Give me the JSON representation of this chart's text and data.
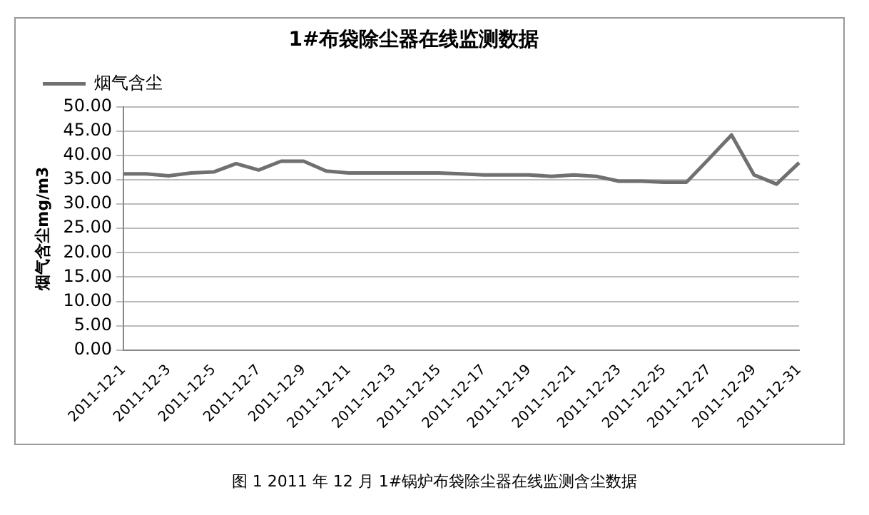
{
  "chart_data": {
    "type": "line",
    "title": "1#布袋除尘器在线监测数据",
    "ylabel": "烟气含尘mg/m3",
    "categories": [
      "2011-12-1",
      null,
      "2011-12-3",
      null,
      "2011-12-5",
      null,
      "2011-12-7",
      null,
      "2011-12-9",
      null,
      "2011-12-11",
      null,
      "2011-12-13",
      null,
      "2011-12-15",
      null,
      "2011-12-17",
      null,
      "2011-12-19",
      null,
      "2011-12-21",
      null,
      "2011-12-23",
      null,
      "2011-12-25",
      null,
      "2011-12-27",
      null,
      "2011-12-29",
      null,
      "2011-12-31"
    ],
    "series": [
      {
        "name": "烟气含尘",
        "color": "#707070",
        "values": [
          36.2,
          36.2,
          35.8,
          36.4,
          36.6,
          38.3,
          37.0,
          38.8,
          38.8,
          36.8,
          36.4,
          36.4,
          36.4,
          36.4,
          36.4,
          36.2,
          36.0,
          36.0,
          36.0,
          35.7,
          36.0,
          35.7,
          34.7,
          34.7,
          34.5,
          34.5,
          39.3,
          44.2,
          36.0,
          34.1,
          38.5
        ]
      }
    ],
    "ylim": [
      0,
      50
    ],
    "yticks": [
      {
        "value": 0,
        "label": "0.00"
      },
      {
        "value": 5,
        "label": "5.00"
      },
      {
        "value": 10,
        "label": "10.00"
      },
      {
        "value": 15,
        "label": "15.00"
      },
      {
        "value": 20,
        "label": "20.00"
      },
      {
        "value": 25,
        "label": "25.00"
      },
      {
        "value": 30,
        "label": "30.00"
      },
      {
        "value": 35,
        "label": "35.00"
      },
      {
        "value": 40,
        "label": "40.00"
      },
      {
        "value": 45,
        "label": "45.00"
      },
      {
        "value": 50,
        "label": "50.00"
      }
    ],
    "grid": "y",
    "legend": "top left",
    "marker": "none",
    "line_style": "solid",
    "annotations": [
      "图 1  2011 年 12 月 1#锅炉布袋除尘器在线监测含尘数据"
    ]
  }
}
